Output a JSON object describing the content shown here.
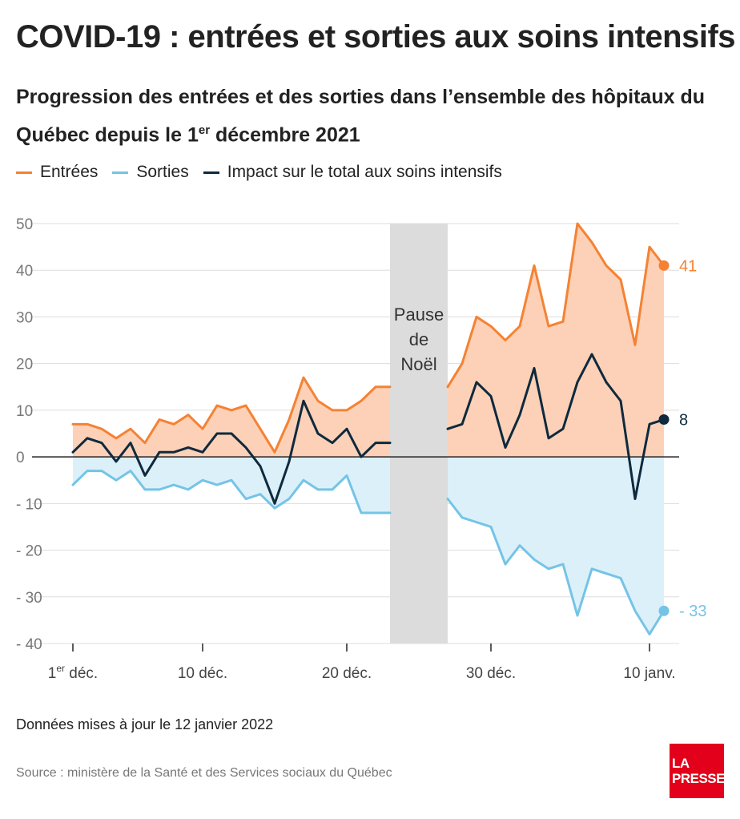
{
  "title": "COVID-19 : entrées et sorties aux soins intensifs",
  "subtitle_main": "Progression des entrées et des sorties dans l’ensemble des hôpitaux du Québec depuis le 1",
  "subtitle_sup": "er",
  "subtitle_end": " décembre 2021",
  "legend": {
    "entrees": "Entrées",
    "sorties": "Sorties",
    "impact": "Impact sur le total aux soins intensifs"
  },
  "colors": {
    "entrees": "#f58233",
    "entrees_fill": "#fcd1b8",
    "sorties": "#74c4e6",
    "sorties_fill": "#dcf0fa",
    "impact": "#0f2a3d",
    "pause": "#dcdcdc"
  },
  "annotation": {
    "pause_line1": "Pause",
    "pause_line2": "de",
    "pause_line3": "Noël"
  },
  "updated": "Données mises à jour le 12 janvier 2022",
  "source": "Source : ministère de la Santé et des Services sociaux du Québec",
  "logo": {
    "line1": "LA",
    "line2": "PRESSE"
  },
  "chart_data": {
    "type": "area",
    "ylim": [
      -40,
      50
    ],
    "yticks": [
      50,
      40,
      30,
      20,
      10,
      0,
      -10,
      -20,
      -30,
      -40
    ],
    "ytick_labels": [
      "50",
      "40",
      "30",
      "20",
      "10",
      "0",
      "- 10",
      "- 20",
      "- 30",
      "- 40"
    ],
    "xlim": [
      1,
      42
    ],
    "xticks": [
      {
        "day": 1,
        "label": "déc.",
        "prefix": "1",
        "sup": "er"
      },
      {
        "day": 10,
        "label": "10 déc."
      },
      {
        "day": 20,
        "label": "20 déc."
      },
      {
        "day": 30,
        "label": "30 déc."
      },
      {
        "day": 41,
        "label": "10 janv."
      }
    ],
    "pause_range": [
      23,
      27
    ],
    "series": [
      {
        "name": "Entrées",
        "key": "entrees",
        "segments": [
          {
            "x": [
              1,
              2,
              3,
              4,
              5,
              6,
              7,
              8,
              9,
              10,
              11,
              12,
              13,
              14,
              15,
              16,
              17,
              18,
              19,
              20,
              21,
              22,
              23
            ],
            "y": [
              7,
              7,
              6,
              4,
              6,
              3,
              8,
              7,
              9,
              6,
              11,
              10,
              11,
              6,
              1,
              8,
              17,
              12,
              10,
              10,
              12,
              15,
              15
            ]
          },
          {
            "x": [
              27,
              28,
              29,
              30,
              31,
              32,
              33,
              34,
              35,
              36,
              37,
              38,
              39,
              40,
              41,
              42
            ],
            "y": [
              15,
              20,
              30,
              28,
              25,
              28,
              41,
              28,
              29,
              50,
              46,
              41,
              38,
              24,
              45,
              41
            ]
          }
        ],
        "end_label": "41"
      },
      {
        "name": "Sorties",
        "key": "sorties",
        "segments": [
          {
            "x": [
              1,
              2,
              3,
              4,
              5,
              6,
              7,
              8,
              9,
              10,
              11,
              12,
              13,
              14,
              15,
              16,
              17,
              18,
              19,
              20,
              21,
              22,
              23
            ],
            "y": [
              -6,
              -3,
              -3,
              -5,
              -3,
              -7,
              -7,
              -6,
              -7,
              -5,
              -6,
              -5,
              -9,
              -8,
              -11,
              -9,
              -5,
              -7,
              -7,
              -4,
              -12,
              -12,
              -12
            ]
          },
          {
            "x": [
              27,
              28,
              29,
              30,
              31,
              32,
              33,
              34,
              35,
              36,
              37,
              38,
              39,
              40,
              41,
              42
            ],
            "y": [
              -9,
              -13,
              -14,
              -15,
              -23,
              -19,
              -22,
              -24,
              -23,
              -34,
              -24,
              -25,
              -26,
              -33,
              -38,
              -33
            ]
          }
        ],
        "end_label": "- 33"
      },
      {
        "name": "Impact sur le total aux soins intensifs",
        "key": "impact",
        "segments": [
          {
            "x": [
              1,
              2,
              3,
              4,
              5,
              6,
              7,
              8,
              9,
              10,
              11,
              12,
              13,
              14,
              15,
              16,
              17,
              18,
              19,
              20,
              21,
              22,
              23
            ],
            "y": [
              1,
              4,
              3,
              -1,
              3,
              -4,
              1,
              1,
              2,
              1,
              5,
              5,
              2,
              -2,
              -10,
              -1,
              12,
              5,
              3,
              6,
              0,
              3,
              3
            ]
          },
          {
            "x": [
              27,
              28,
              29,
              30,
              31,
              32,
              33,
              34,
              35,
              36,
              37,
              38,
              39,
              40,
              41,
              42
            ],
            "y": [
              6,
              7,
              16,
              13,
              2,
              9,
              19,
              4,
              6,
              16,
              22,
              16,
              12,
              -9,
              7,
              8
            ]
          }
        ],
        "end_label": "8"
      }
    ]
  }
}
